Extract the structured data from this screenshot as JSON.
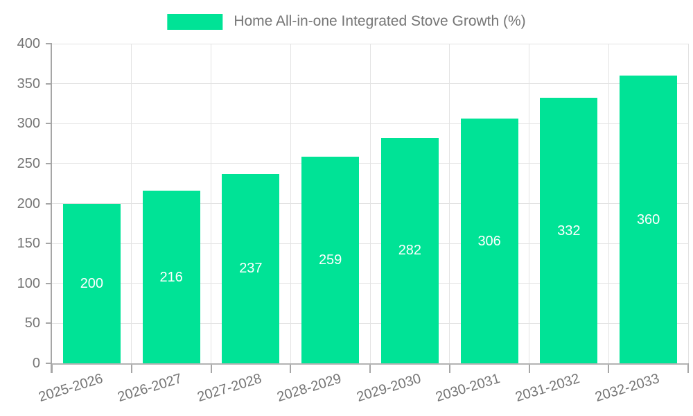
{
  "chart_data": {
    "type": "bar",
    "title": "Home All-in-one Integrated Stove Growth (%)",
    "categories": [
      "2025-2026",
      "2026-2027",
      "2027-2028",
      "2028-2029",
      "2029-2030",
      "2030-2031",
      "2031-2032",
      "2032-2033"
    ],
    "values": [
      200,
      216,
      237,
      259,
      282,
      306,
      332,
      360
    ],
    "xlabel": "",
    "ylabel": "",
    "ylim": [
      0,
      400
    ],
    "yticks": [
      0,
      50,
      100,
      150,
      200,
      250,
      300,
      350,
      400
    ],
    "grid": true,
    "legend_position": "top",
    "colors": {
      "bar": "#00e396",
      "value_label": "#ffffff",
      "axis_text": "#757575",
      "grid": "#e3e3e3",
      "axis_line": "#a6a6a6",
      "background": "#ffffff"
    }
  }
}
